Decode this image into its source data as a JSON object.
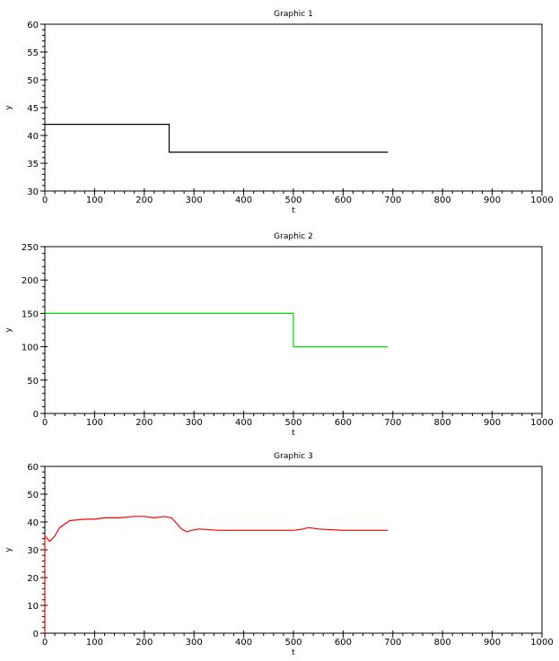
{
  "chart_data": [
    {
      "type": "line",
      "title": "Graphic 1",
      "xlabel": "t",
      "ylabel": "y",
      "xlim": [
        0,
        1000
      ],
      "ylim": [
        30,
        60
      ],
      "xticks": [
        "0",
        "100",
        "200",
        "300",
        "400",
        "500",
        "600",
        "700",
        "800",
        "900",
        "1000"
      ],
      "yticks": [
        "30",
        "35",
        "40",
        "45",
        "50",
        "55",
        "60"
      ],
      "grid": false,
      "series": [
        {
          "color": "#000000",
          "x": [
            0,
            250,
            250,
            690
          ],
          "y": [
            42,
            42,
            37,
            37
          ]
        }
      ]
    },
    {
      "type": "line",
      "title": "Graphic 2",
      "xlabel": "t",
      "ylabel": "y",
      "xlim": [
        0,
        1000
      ],
      "ylim": [
        0,
        250
      ],
      "xticks": [
        "0",
        "100",
        "200",
        "300",
        "400",
        "500",
        "600",
        "700",
        "800",
        "900",
        "1000"
      ],
      "yticks": [
        "0",
        "50",
        "100",
        "150",
        "200",
        "250"
      ],
      "grid": false,
      "series": [
        {
          "color": "#00dd00",
          "x": [
            0,
            500,
            500,
            690
          ],
          "y": [
            150,
            150,
            100,
            100
          ]
        }
      ]
    },
    {
      "type": "line",
      "title": "Graphic 3",
      "xlabel": "t",
      "ylabel": "y",
      "xlim": [
        0,
        1000
      ],
      "ylim": [
        0,
        60
      ],
      "xticks": [
        "0",
        "100",
        "200",
        "300",
        "400",
        "500",
        "600",
        "700",
        "800",
        "900",
        "1000"
      ],
      "yticks": [
        "0",
        "10",
        "20",
        "30",
        "40",
        "50",
        "60"
      ],
      "grid": false,
      "series": [
        {
          "color": "#ff0000",
          "x": [
            0,
            0,
            5,
            10,
            20,
            30,
            50,
            80,
            100,
            120,
            150,
            180,
            200,
            220,
            240,
            255,
            265,
            275,
            285,
            295,
            310,
            350,
            400,
            450,
            500,
            520,
            530,
            550,
            600,
            650,
            690
          ],
          "y": [
            0,
            35,
            34,
            33,
            35,
            38,
            40.5,
            41,
            41,
            41.5,
            41.5,
            42,
            42,
            41.5,
            42,
            41.5,
            39.5,
            37.5,
            36.5,
            37,
            37.5,
            37,
            37,
            37,
            37,
            37.5,
            38,
            37.5,
            37,
            37,
            37
          ]
        }
      ]
    }
  ]
}
